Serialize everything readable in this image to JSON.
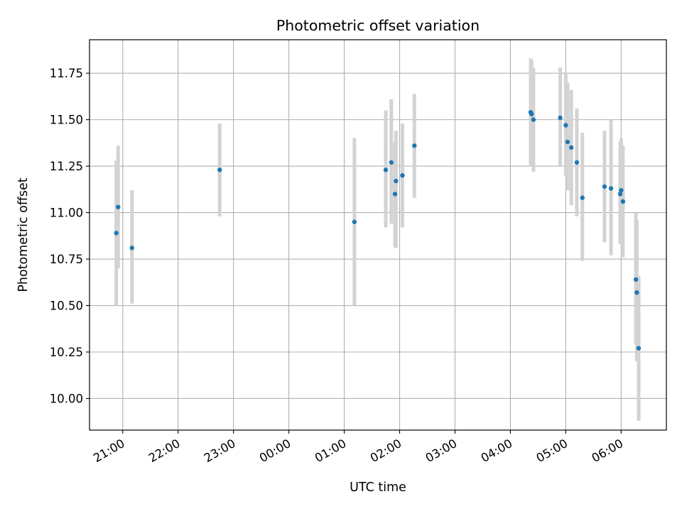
{
  "chart_data": {
    "type": "scatter",
    "title": "Photometric offset variation",
    "xlabel": "UTC time",
    "ylabel": "Photometric offset",
    "x_axis": {
      "kind": "time",
      "range": [
        "20:24",
        "06:49"
      ],
      "ticks": [
        "21:00",
        "22:00",
        "23:00",
        "00:00",
        "01:00",
        "02:00",
        "03:00",
        "04:00",
        "05:00",
        "06:00"
      ]
    },
    "y_axis": {
      "range": [
        9.83,
        11.93
      ],
      "ticks": [
        "10.00",
        "10.25",
        "10.50",
        "10.75",
        "11.00",
        "11.25",
        "11.50",
        "11.75"
      ]
    },
    "grid": true,
    "colors": {
      "points": "#1f77b4",
      "errorbars": "#d3d3d3",
      "grid": "#b0b0b0",
      "axes": "#000000"
    },
    "points": [
      {
        "x": "20:53",
        "y": 10.89,
        "ylo": 10.5,
        "yhi": 11.28
      },
      {
        "x": "20:55",
        "y": 11.03,
        "ylo": 10.7,
        "yhi": 11.36
      },
      {
        "x": "21:10",
        "y": 10.81,
        "ylo": 10.51,
        "yhi": 11.12
      },
      {
        "x": "22:45",
        "y": 11.23,
        "ylo": 10.98,
        "yhi": 11.48
      },
      {
        "x": "01:11",
        "y": 10.95,
        "ylo": 10.5,
        "yhi": 11.4
      },
      {
        "x": "01:45",
        "y": 11.23,
        "ylo": 10.92,
        "yhi": 11.55
      },
      {
        "x": "01:51",
        "y": 11.27,
        "ylo": 10.94,
        "yhi": 11.61
      },
      {
        "x": "01:55",
        "y": 11.1,
        "ylo": 10.82,
        "yhi": 11.38
      },
      {
        "x": "01:56",
        "y": 11.17,
        "ylo": 10.81,
        "yhi": 11.44
      },
      {
        "x": "02:03",
        "y": 11.2,
        "ylo": 10.92,
        "yhi": 11.48
      },
      {
        "x": "02:16",
        "y": 11.36,
        "ylo": 11.08,
        "yhi": 11.64
      },
      {
        "x": "04:22",
        "y": 11.54,
        "ylo": 11.25,
        "yhi": 11.83
      },
      {
        "x": "04:23",
        "y": 11.53,
        "ylo": 11.25,
        "yhi": 11.82
      },
      {
        "x": "04:25",
        "y": 11.5,
        "ylo": 11.22,
        "yhi": 11.78
      },
      {
        "x": "04:54",
        "y": 11.51,
        "ylo": 11.25,
        "yhi": 11.78
      },
      {
        "x": "05:00",
        "y": 11.47,
        "ylo": 11.2,
        "yhi": 11.75
      },
      {
        "x": "05:02",
        "y": 11.38,
        "ylo": 11.12,
        "yhi": 11.7
      },
      {
        "x": "05:06",
        "y": 11.35,
        "ylo": 11.04,
        "yhi": 11.66
      },
      {
        "x": "05:12",
        "y": 11.27,
        "ylo": 10.98,
        "yhi": 11.56
      },
      {
        "x": "05:18",
        "y": 11.08,
        "ylo": 10.74,
        "yhi": 11.43
      },
      {
        "x": "05:42",
        "y": 11.14,
        "ylo": 10.84,
        "yhi": 11.44
      },
      {
        "x": "05:49",
        "y": 11.13,
        "ylo": 10.77,
        "yhi": 11.5
      },
      {
        "x": "05:59",
        "y": 11.1,
        "ylo": 10.83,
        "yhi": 11.38
      },
      {
        "x": "06:00",
        "y": 11.12,
        "ylo": 10.84,
        "yhi": 11.4
      },
      {
        "x": "06:02",
        "y": 11.06,
        "ylo": 10.76,
        "yhi": 11.36
      },
      {
        "x": "06:16",
        "y": 10.64,
        "ylo": 10.29,
        "yhi": 11.0
      },
      {
        "x": "06:17",
        "y": 10.57,
        "ylo": 10.2,
        "yhi": 10.96
      },
      {
        "x": "06:19",
        "y": 10.27,
        "ylo": 9.88,
        "yhi": 10.66
      }
    ]
  }
}
